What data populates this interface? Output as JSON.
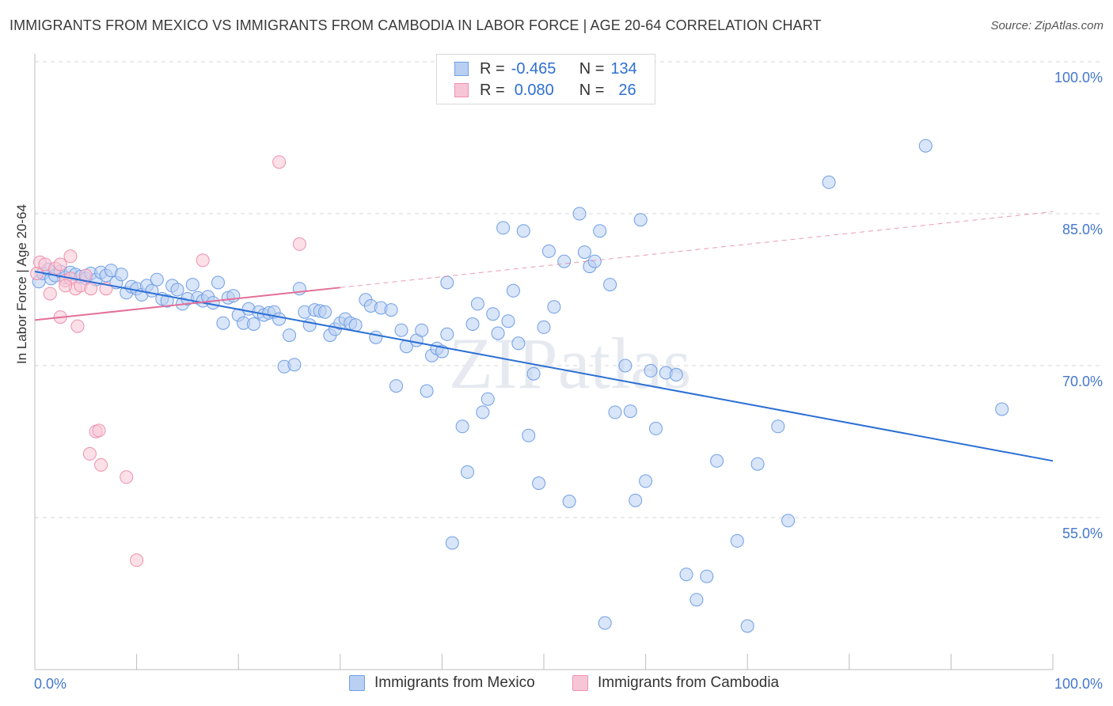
{
  "title": "IMMIGRANTS FROM MEXICO VS IMMIGRANTS FROM CAMBODIA IN LABOR FORCE | AGE 20-64 CORRELATION CHART",
  "source": "Source: ZipAtlas.com",
  "watermark": "ZIPatlas",
  "legend": {
    "rows": [
      {
        "r_label": "R =",
        "r_value": "-0.465",
        "n_label": "N =",
        "n_value": "134"
      },
      {
        "r_label": "R =",
        "r_value": "0.080",
        "n_label": "N =",
        "n_value": "26"
      }
    ]
  },
  "chart_data": {
    "type": "scatter",
    "ylabel": "In Labor Force | Age 20-64",
    "xlabel": "",
    "x_tick_labels": [
      "0.0%",
      "100.0%"
    ],
    "y_tick_labels": [
      "100.0%",
      "85.0%",
      "70.0%",
      "55.0%"
    ],
    "xlim": [
      0,
      100
    ],
    "ylim": [
      40,
      102
    ],
    "grid": "horizontal dashed",
    "colors": {
      "mexico": "#6f9fe6",
      "mexico_fill": "#b9d0f3",
      "cambodia": "#ef8fae",
      "cambodia_fill": "#f7c6d6",
      "mexico_line": "#2b6fd4",
      "cambodia_line": "#e46f98"
    },
    "series": [
      {
        "name": "Immigrants from Mexico",
        "trend": {
          "x": [
            0,
            100
          ],
          "y": [
            79.3,
            60.6
          ]
        },
        "points": [
          [
            0.4,
            78.3
          ],
          [
            0.8,
            79.1
          ],
          [
            1.3,
            79.5
          ],
          [
            1.6,
            78.6
          ],
          [
            2.0,
            78.9
          ],
          [
            2.5,
            79.3
          ],
          [
            3.0,
            78.7
          ],
          [
            3.5,
            79.2
          ],
          [
            4.0,
            79.0
          ],
          [
            4.5,
            78.8
          ],
          [
            5.0,
            78.6
          ],
          [
            5.5,
            79.1
          ],
          [
            6.0,
            78.5
          ],
          [
            6.5,
            79.2
          ],
          [
            7.0,
            78.9
          ],
          [
            7.5,
            79.4
          ],
          [
            8.0,
            78.2
          ],
          [
            8.5,
            79.0
          ],
          [
            9.0,
            77.2
          ],
          [
            9.5,
            77.8
          ],
          [
            10.0,
            77.6
          ],
          [
            10.5,
            77.0
          ],
          [
            11.0,
            77.9
          ],
          [
            11.5,
            77.4
          ],
          [
            12.0,
            78.5
          ],
          [
            12.5,
            76.6
          ],
          [
            13.0,
            76.4
          ],
          [
            13.5,
            77.9
          ],
          [
            14.0,
            77.5
          ],
          [
            14.5,
            76.1
          ],
          [
            15.0,
            76.6
          ],
          [
            15.5,
            78.0
          ],
          [
            16.0,
            76.7
          ],
          [
            16.5,
            76.4
          ],
          [
            17.0,
            76.8
          ],
          [
            17.5,
            76.2
          ],
          [
            18.0,
            78.2
          ],
          [
            18.5,
            74.2
          ],
          [
            19.0,
            76.7
          ],
          [
            19.5,
            76.9
          ],
          [
            20.0,
            75.0
          ],
          [
            20.5,
            74.2
          ],
          [
            21.0,
            75.6
          ],
          [
            21.5,
            74.1
          ],
          [
            22.0,
            75.3
          ],
          [
            22.5,
            75.0
          ],
          [
            23.0,
            75.2
          ],
          [
            23.5,
            75.3
          ],
          [
            24.0,
            74.6
          ],
          [
            24.5,
            69.9
          ],
          [
            25.0,
            73.0
          ],
          [
            25.5,
            70.1
          ],
          [
            26.0,
            77.6
          ],
          [
            26.5,
            75.3
          ],
          [
            27.0,
            74.0
          ],
          [
            27.5,
            75.5
          ],
          [
            28.0,
            75.4
          ],
          [
            28.5,
            75.3
          ],
          [
            29.0,
            73.0
          ],
          [
            29.5,
            73.6
          ],
          [
            30.0,
            74.2
          ],
          [
            30.5,
            74.6
          ],
          [
            31.0,
            74.2
          ],
          [
            31.5,
            74.0
          ],
          [
            32.5,
            76.5
          ],
          [
            33.0,
            75.9
          ],
          [
            33.5,
            72.8
          ],
          [
            34.0,
            75.7
          ],
          [
            35.0,
            75.5
          ],
          [
            35.5,
            68.0
          ],
          [
            36.0,
            73.5
          ],
          [
            36.5,
            71.9
          ],
          [
            37.5,
            72.5
          ],
          [
            38.0,
            73.5
          ],
          [
            38.5,
            67.5
          ],
          [
            39.0,
            71.0
          ],
          [
            39.5,
            71.7
          ],
          [
            40.0,
            71.4
          ],
          [
            40.5,
            73.1
          ],
          [
            40.5,
            78.2
          ],
          [
            41.0,
            52.5
          ],
          [
            42.0,
            64.0
          ],
          [
            42.5,
            59.5
          ],
          [
            43.0,
            74.1
          ],
          [
            43.5,
            76.1
          ],
          [
            44.0,
            65.4
          ],
          [
            44.5,
            66.7
          ],
          [
            45.0,
            75.1
          ],
          [
            45.5,
            73.2
          ],
          [
            46.0,
            83.6
          ],
          [
            46.5,
            74.4
          ],
          [
            47.0,
            77.4
          ],
          [
            47.5,
            72.2
          ],
          [
            48.0,
            83.3
          ],
          [
            48.5,
            63.1
          ],
          [
            49.0,
            69.2
          ],
          [
            49.5,
            58.4
          ],
          [
            50.0,
            73.8
          ],
          [
            50.5,
            81.3
          ],
          [
            51.0,
            75.8
          ],
          [
            52.0,
            80.3
          ],
          [
            52.5,
            56.6
          ],
          [
            53.5,
            85.0
          ],
          [
            54.0,
            81.2
          ],
          [
            54.5,
            79.8
          ],
          [
            55.0,
            80.3
          ],
          [
            55.5,
            83.3
          ],
          [
            56.0,
            44.6
          ],
          [
            56.5,
            78.0
          ],
          [
            57.0,
            65.4
          ],
          [
            58.0,
            70.0
          ],
          [
            58.5,
            65.5
          ],
          [
            59.0,
            56.7
          ],
          [
            59.5,
            84.4
          ],
          [
            60.0,
            58.6
          ],
          [
            60.5,
            69.5
          ],
          [
            61.0,
            63.8
          ],
          [
            62.0,
            69.3
          ],
          [
            63.0,
            69.1
          ],
          [
            64.0,
            49.4
          ],
          [
            65.0,
            46.9
          ],
          [
            66.0,
            49.2
          ],
          [
            67.0,
            60.6
          ],
          [
            69.0,
            52.7
          ],
          [
            70.0,
            44.3
          ],
          [
            71.0,
            60.3
          ],
          [
            73.0,
            64.0
          ],
          [
            74.0,
            54.7
          ],
          [
            78.0,
            88.1
          ],
          [
            87.5,
            91.7
          ],
          [
            95.0,
            65.7
          ],
          [
            48.0,
            100.0
          ]
        ]
      },
      {
        "name": "Immigrants from Cambodia",
        "trend": {
          "x": [
            0,
            100
          ],
          "y": [
            74.5,
            85.2
          ]
        },
        "points": [
          [
            0.2,
            79.1
          ],
          [
            0.5,
            80.2
          ],
          [
            1.0,
            80.0
          ],
          [
            1.5,
            77.1
          ],
          [
            2.0,
            79.6
          ],
          [
            2.5,
            80.0
          ],
          [
            3.0,
            78.4
          ],
          [
            3.5,
            78.6
          ],
          [
            4.0,
            77.6
          ],
          [
            4.5,
            77.9
          ],
          [
            2.5,
            74.8
          ],
          [
            3.0,
            77.9
          ],
          [
            3.5,
            80.8
          ],
          [
            4.2,
            73.9
          ],
          [
            5.0,
            78.9
          ],
          [
            5.5,
            77.6
          ],
          [
            6.0,
            63.5
          ],
          [
            6.3,
            63.6
          ],
          [
            5.4,
            61.3
          ],
          [
            6.5,
            60.2
          ],
          [
            7.0,
            77.6
          ],
          [
            9.0,
            59.0
          ],
          [
            10.0,
            50.8
          ],
          [
            16.5,
            80.4
          ],
          [
            24.0,
            90.1
          ],
          [
            26.0,
            82.0
          ]
        ]
      }
    ]
  },
  "bottom_legend": {
    "items": [
      "Immigrants from Mexico",
      "Immigrants from Cambodia"
    ]
  }
}
